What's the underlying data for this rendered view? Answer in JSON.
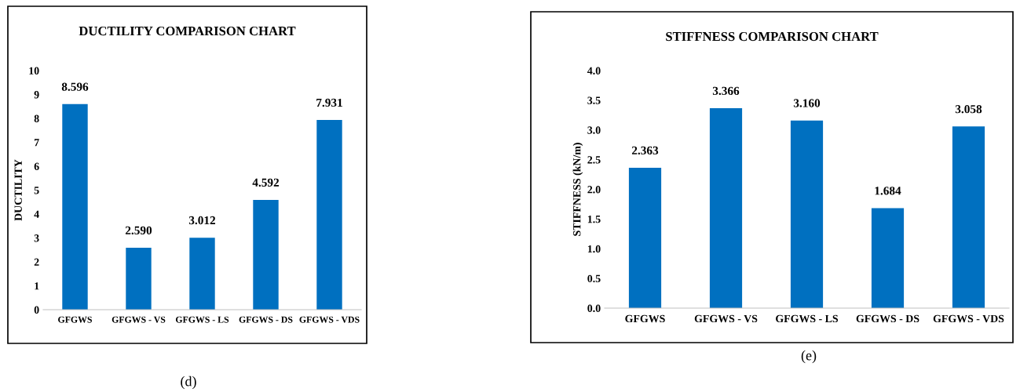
{
  "chart_data": [
    {
      "type": "bar",
      "title": "DUCTILITY COMPARISON CHART",
      "ylabel": "DUCTILITY",
      "categories": [
        "GFGWS",
        "GFGWS - VS",
        "GFGWS - LS",
        "GFGWS - DS",
        "GFGWS - VDS"
      ],
      "values": [
        8.596,
        2.59,
        3.012,
        4.592,
        7.931
      ],
      "value_labels": [
        "8.596",
        "2.590",
        "3.012",
        "4.592",
        "7.931"
      ],
      "color": "#0070c0",
      "ylim": [
        0,
        10
      ],
      "yticks": [
        0,
        1,
        2,
        3,
        4,
        5,
        6,
        7,
        8,
        9,
        10
      ],
      "grid": false,
      "legend": false,
      "annotations": [
        "(d)"
      ]
    },
    {
      "type": "bar",
      "title": "STIFFNESS COMPARISON CHART",
      "ylabel": "STIFFNESS (kN/m)",
      "categories": [
        "GFGWS",
        "GFGWS - VS",
        "GFGWS - LS",
        "GFGWS - DS",
        "GFGWS - VDS"
      ],
      "values": [
        2.363,
        3.366,
        3.16,
        1.684,
        3.058
      ],
      "value_labels": [
        "2.363",
        "3.366",
        "3.160",
        "1.684",
        "3.058"
      ],
      "color": "#0070c0",
      "ylim": [
        0,
        4
      ],
      "yticks": [
        {
          "value": 0,
          "label": "0.0"
        },
        {
          "value": 0.5,
          "label": "0.5"
        },
        {
          "value": 1,
          "label": "1.0"
        },
        {
          "value": 1.5,
          "label": "1.5"
        },
        {
          "value": 2,
          "label": "2.0"
        },
        {
          "value": 2.5,
          "label": "2.5"
        },
        {
          "value": 3,
          "label": "3.0"
        },
        {
          "value": 3.5,
          "label": "3.5"
        },
        {
          "value": 4,
          "label": "4.0"
        }
      ],
      "grid": false,
      "legend": false,
      "annotations": [
        "(e)"
      ]
    }
  ]
}
